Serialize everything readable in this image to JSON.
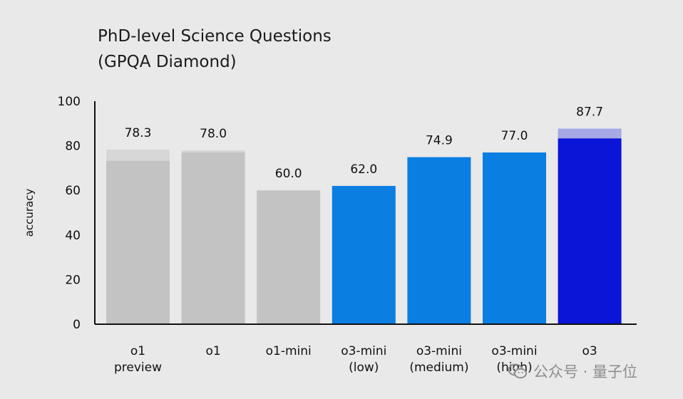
{
  "chart_data": {
    "type": "bar",
    "title": [
      "PhD-level Science Questions",
      "(GPQA Diamond)"
    ],
    "ylabel": "accuracy",
    "xlabel": "",
    "ylim": [
      0,
      100
    ],
    "yticks": [
      0,
      20,
      40,
      60,
      80,
      100
    ],
    "grid": false,
    "categories": [
      [
        "o1",
        "preview"
      ],
      [
        "o1"
      ],
      [
        "o1-mini"
      ],
      [
        "o3-mini",
        "(low)"
      ],
      [
        "o3-mini",
        "(medium)"
      ],
      [
        "o3-mini",
        "(high)"
      ],
      [
        "o3"
      ]
    ],
    "values": [
      78.3,
      78.0,
      60.0,
      62.0,
      74.9,
      77.0,
      87.7
    ],
    "value_labels": [
      "78.3",
      "78.0",
      "60.0",
      "62.0",
      "74.9",
      "77.0",
      "87.7"
    ],
    "base_values": [
      73.3,
      77.0,
      60.0,
      62.0,
      74.9,
      77.0,
      83.3
    ],
    "colors": {
      "o1_family": "#c3c3c3",
      "o1_family_extra": "#d7d7d7",
      "o3_mini": "#0b7ee2",
      "o3": "#0a15d8",
      "o3_extra": "#a7a9e6",
      "axis": "#111111",
      "text": "#111111"
    },
    "bar_colors": [
      "#c3c3c3",
      "#c3c3c3",
      "#c3c3c3",
      "#0b7ee2",
      "#0b7ee2",
      "#0b7ee2",
      "#0a15d8"
    ],
    "extra_colors": [
      "#d7d7d7",
      "#d7d7d7",
      "#d7d7d7",
      "#0b7ee2",
      "#0b7ee2",
      "#0b7ee2",
      "#a7a9e6"
    ]
  },
  "watermark": {
    "icon": "wechat-icon",
    "text": "公众号 · 量子位"
  }
}
